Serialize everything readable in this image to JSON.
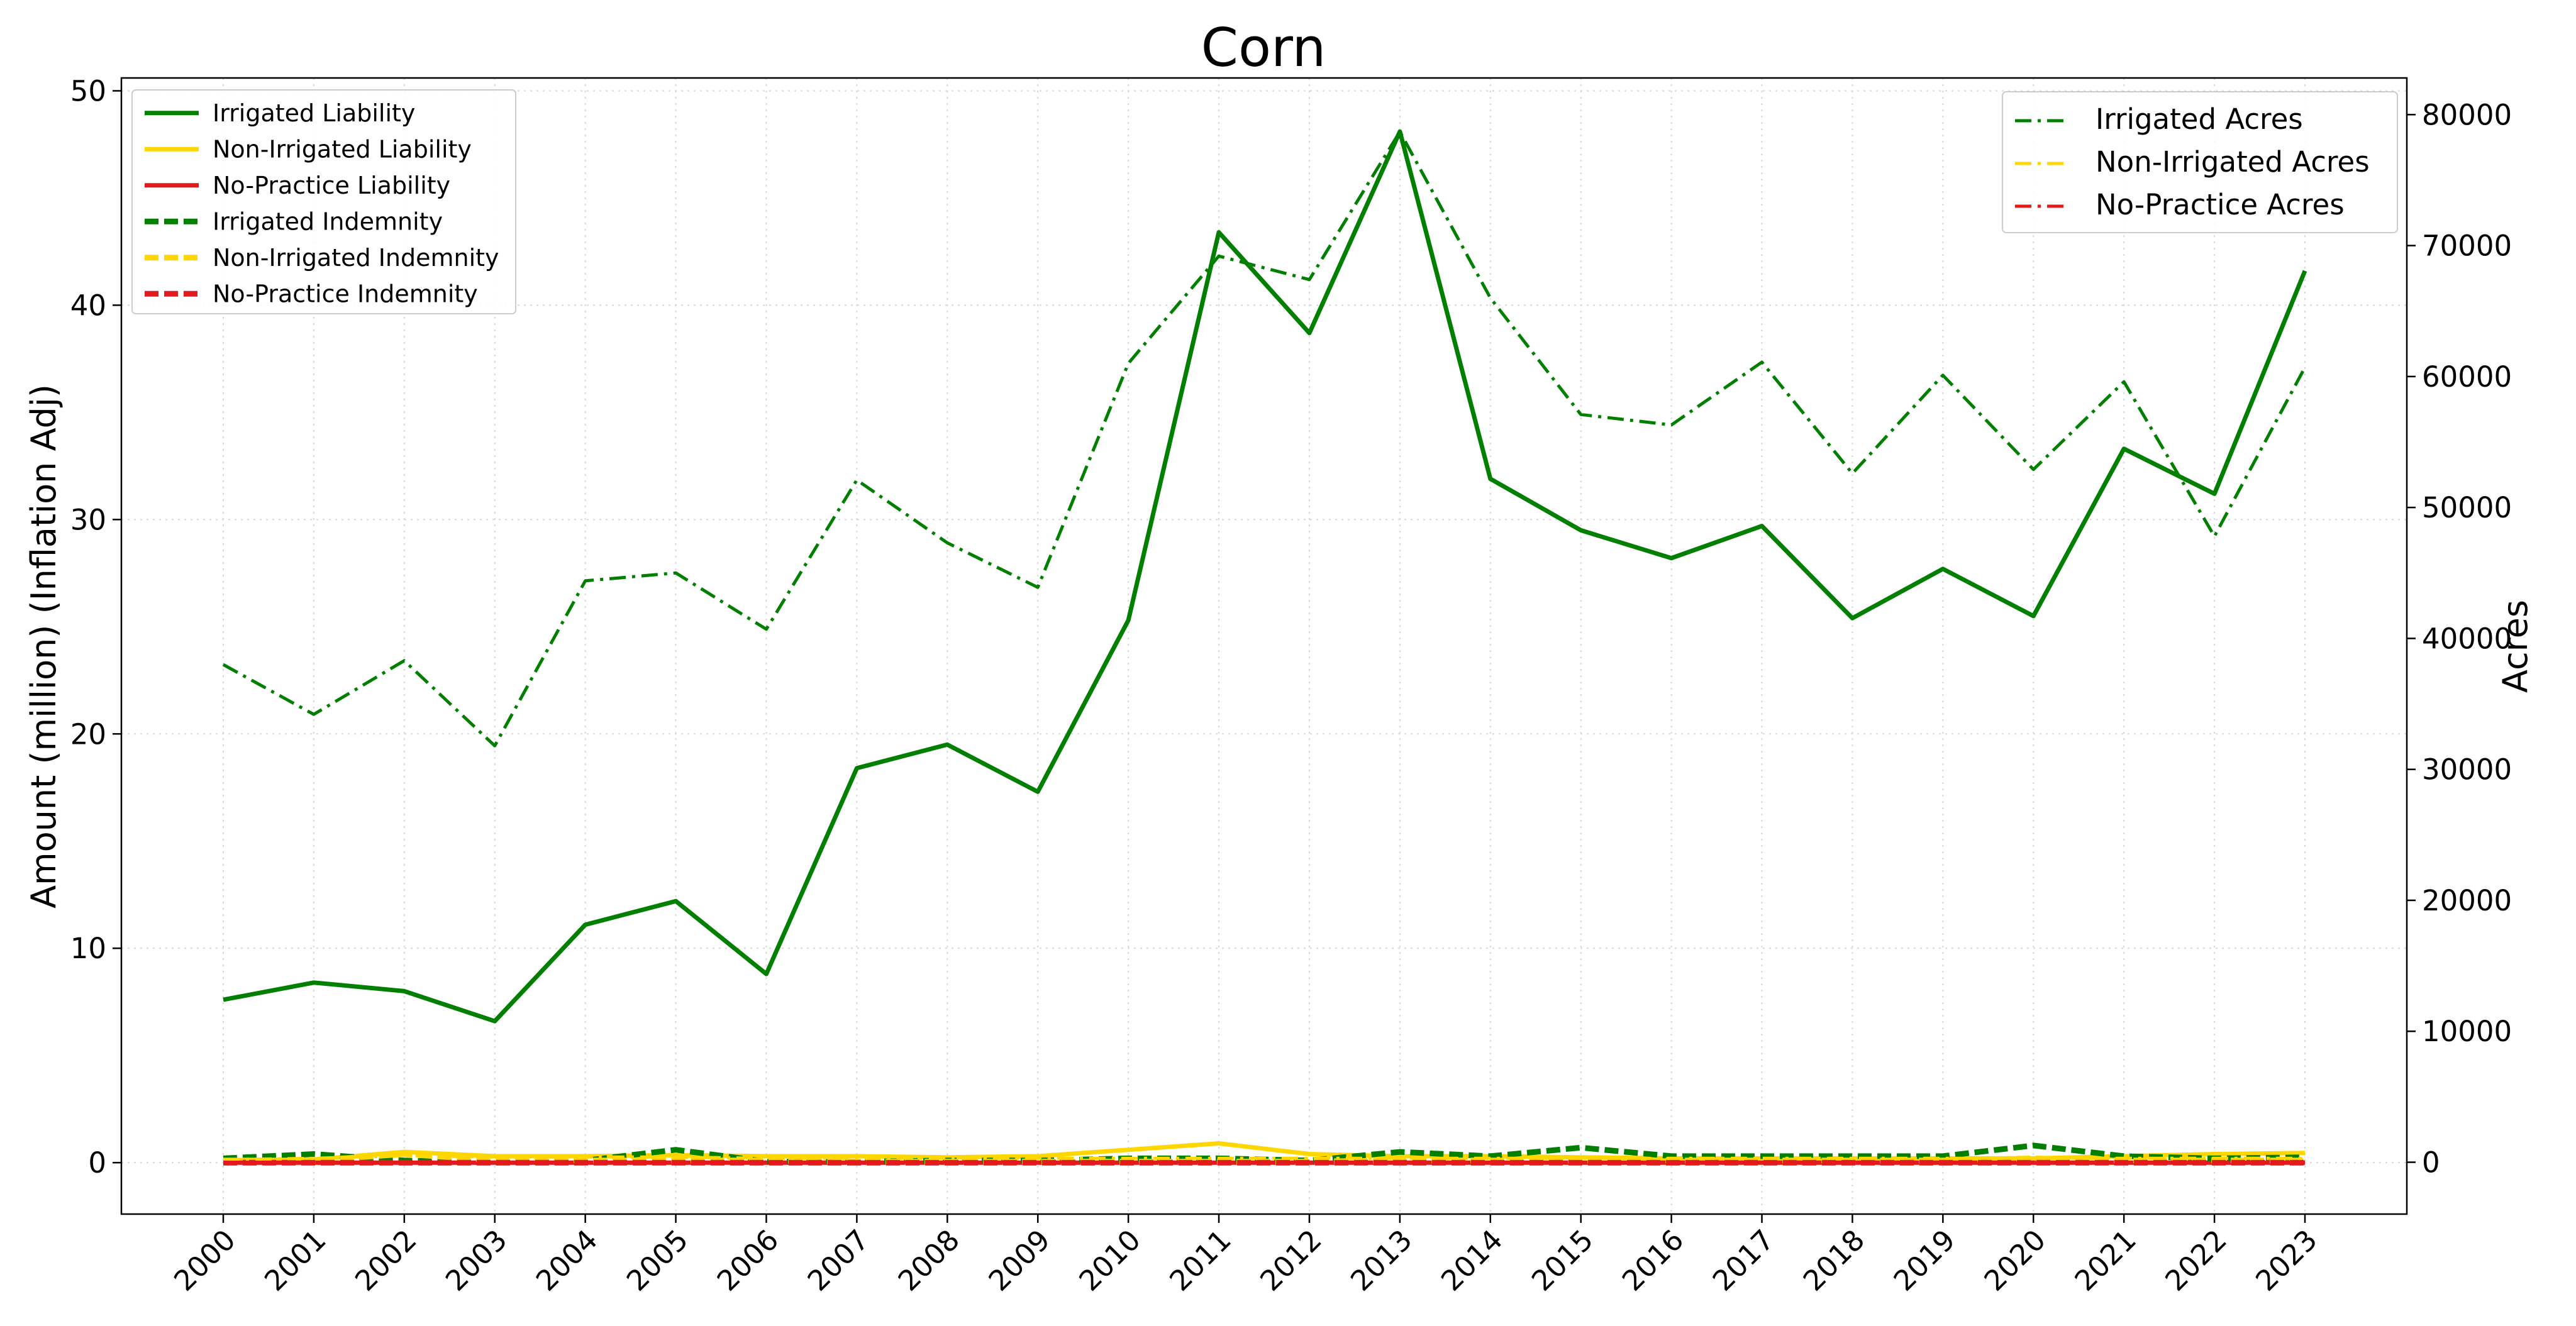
{
  "chart_data": {
    "type": "line",
    "title": "Corn",
    "xlabel": "",
    "ylabel": "Amount (million) (Inflation Adj)",
    "y2label": "Acres",
    "x": [
      "2000",
      "2001",
      "2002",
      "2003",
      "2004",
      "2005",
      "2006",
      "2007",
      "2008",
      "2009",
      "2010",
      "2011",
      "2012",
      "2013",
      "2014",
      "2015",
      "2016",
      "2017",
      "2018",
      "2019",
      "2020",
      "2021",
      "2022",
      "2023"
    ],
    "ylim": [
      -2.4,
      50.6
    ],
    "y2lim": [
      -3960,
      82800
    ],
    "yticks": [
      0,
      10,
      20,
      30,
      40,
      50
    ],
    "y2ticks": [
      0,
      10000,
      20000,
      30000,
      40000,
      50000,
      60000,
      70000,
      80000
    ],
    "grid": true,
    "legend_left_position": "top-left",
    "legend_right_position": "top-right",
    "series": [
      {
        "name": "Irrigated Liability",
        "axis": "left",
        "style": "solid",
        "color": "#007f00",
        "values": [
          7.6,
          8.4,
          8.0,
          6.6,
          11.1,
          12.2,
          8.8,
          18.4,
          19.5,
          17.3,
          25.3,
          43.4,
          38.7,
          48.1,
          31.9,
          29.5,
          28.2,
          29.7,
          25.4,
          27.7,
          25.5,
          33.3,
          31.2,
          41.6
        ]
      },
      {
        "name": "Non-Irrigated Liability",
        "axis": "left",
        "style": "solid",
        "color": "#ffd700",
        "values": [
          0.1,
          0.15,
          0.5,
          0.3,
          0.3,
          0.35,
          0.3,
          0.3,
          0.25,
          0.3,
          0.6,
          0.9,
          0.4,
          0.3,
          0.3,
          0.25,
          0.2,
          0.2,
          0.2,
          0.2,
          0.2,
          0.3,
          0.4,
          0.45
        ]
      },
      {
        "name": "No-Practice Liability",
        "axis": "left",
        "style": "solid",
        "color": "#e31a1c",
        "values": [
          0,
          0,
          0,
          0,
          0,
          0,
          0,
          0,
          0,
          0,
          0,
          0,
          0,
          0,
          0,
          0,
          0,
          0,
          0,
          0,
          0,
          0,
          0,
          0
        ]
      },
      {
        "name": "Irrigated Indemnity",
        "axis": "left",
        "style": "dashed",
        "color": "#007f00",
        "values": [
          0.2,
          0.4,
          0.1,
          0.0,
          0.1,
          0.6,
          0.05,
          0.05,
          0.1,
          0.1,
          0.2,
          0.2,
          0.1,
          0.5,
          0.3,
          0.7,
          0.3,
          0.3,
          0.3,
          0.3,
          0.8,
          0.3,
          0.2,
          0.25
        ]
      },
      {
        "name": "Non-Irrigated Indemnity",
        "axis": "left",
        "style": "dashed",
        "color": "#ffd700",
        "values": [
          0.1,
          0.1,
          0.4,
          0.1,
          0.1,
          0.1,
          0.1,
          0.05,
          0.05,
          0.05,
          0.05,
          0.05,
          0.05,
          0.1,
          0.1,
          0.1,
          0.1,
          0.1,
          0.1,
          0.1,
          0.2,
          0.1,
          0.1,
          0.1
        ]
      },
      {
        "name": "No-Practice Indemnity",
        "axis": "left",
        "style": "dashed",
        "color": "#e31a1c",
        "values": [
          0,
          0,
          0,
          0,
          0,
          0,
          0,
          0,
          0,
          0,
          0,
          0,
          0,
          0,
          0,
          0,
          0,
          0,
          0,
          0,
          0,
          0,
          0,
          0
        ]
      },
      {
        "name": "Irrigated Acres",
        "axis": "right",
        "style": "dashdot",
        "color": "#007f00",
        "values": [
          38000,
          34200,
          38300,
          31800,
          44400,
          45000,
          40700,
          52100,
          47300,
          43900,
          61000,
          69200,
          67400,
          78700,
          66000,
          57100,
          56300,
          61100,
          52600,
          60100,
          52900,
          59600,
          47800,
          60700
        ]
      },
      {
        "name": "Non-Irrigated Acres",
        "axis": "right",
        "style": "dashdot",
        "color": "#ffd700",
        "values": [
          200,
          300,
          500,
          400,
          400,
          400,
          300,
          300,
          300,
          300,
          300,
          300,
          300,
          300,
          300,
          300,
          300,
          300,
          300,
          300,
          300,
          300,
          300,
          300
        ]
      },
      {
        "name": "No-Practice Acres",
        "axis": "right",
        "style": "dashdot",
        "color": "#e31a1c",
        "values": [
          0,
          0,
          0,
          0,
          0,
          0,
          0,
          0,
          0,
          0,
          0,
          0,
          0,
          0,
          0,
          0,
          0,
          0,
          0,
          0,
          0,
          0,
          0,
          0
        ]
      }
    ],
    "legend_left": [
      "Irrigated Liability",
      "Non-Irrigated Liability",
      "No-Practice Liability",
      "Irrigated Indemnity",
      "Non-Irrigated Indemnity",
      "No-Practice Indemnity"
    ],
    "legend_right": [
      "Irrigated Acres",
      "Non-Irrigated Acres",
      "No-Practice Acres"
    ]
  }
}
